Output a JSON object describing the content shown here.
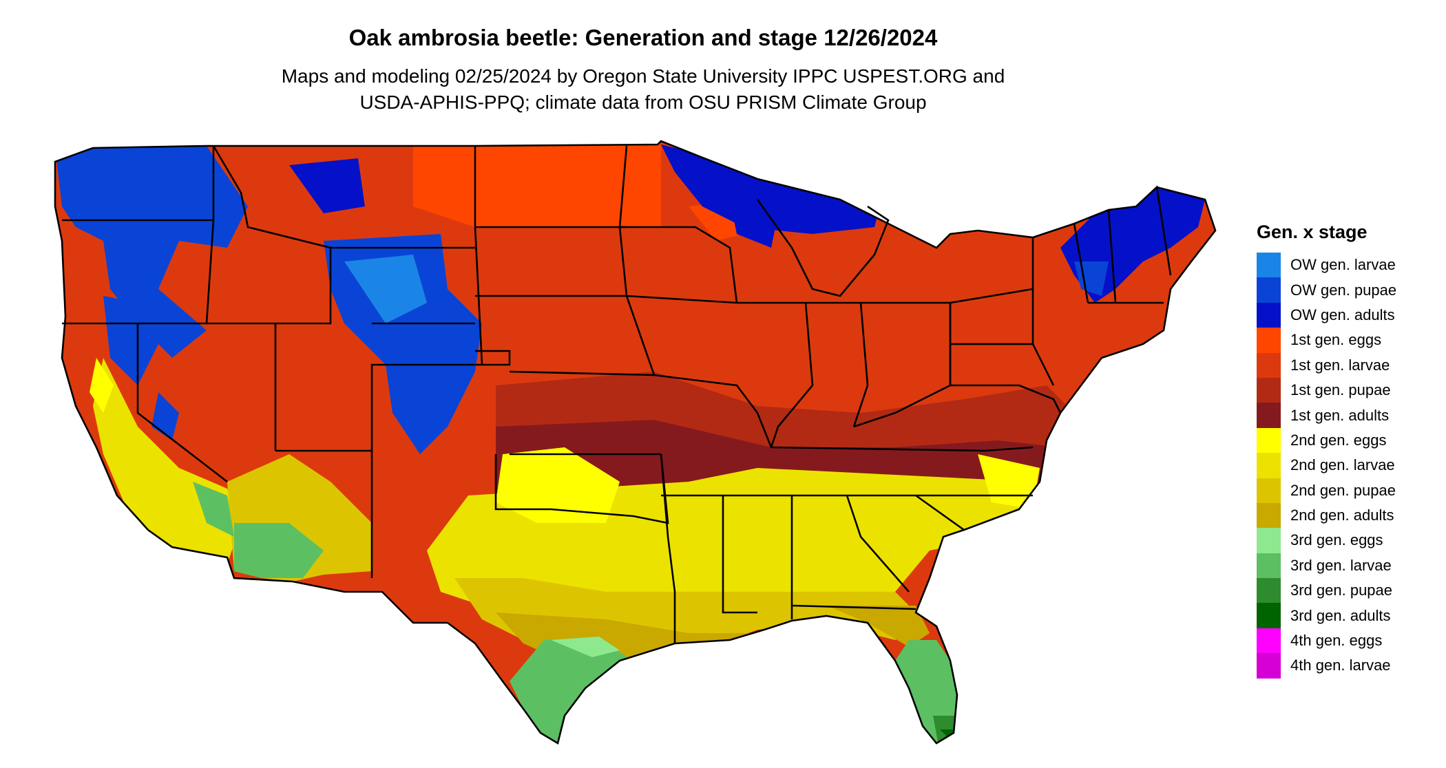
{
  "title": "Oak ambrosia beetle: Generation and stage 12/26/2024",
  "subtitle_line1": "Maps and modeling 02/25/2024 by Oregon State University IPPC USPEST.ORG and",
  "subtitle_line2": "USDA-APHIS-PPQ; climate data from OSU PRISM Climate Group",
  "legend": {
    "title": "Gen. x stage",
    "items": [
      {
        "label": "OW gen. larvae",
        "color": "#1a85e6"
      },
      {
        "label": "OW gen. pupae",
        "color": "#0a44d6"
      },
      {
        "label": "OW gen. adults",
        "color": "#0511c8"
      },
      {
        "label": "1st gen. eggs",
        "color": "#ff4600"
      },
      {
        "label": "1st gen. larvae",
        "color": "#dc3a0e"
      },
      {
        "label": "1st gen. pupae",
        "color": "#b32a14"
      },
      {
        "label": "1st gen. adults",
        "color": "#851a1e"
      },
      {
        "label": "2nd gen. eggs",
        "color": "#ffff00"
      },
      {
        "label": "2nd gen. larvae",
        "color": "#ece200"
      },
      {
        "label": "2nd gen. pupae",
        "color": "#dcc500"
      },
      {
        "label": "2nd gen. adults",
        "color": "#c9a800"
      },
      {
        "label": "3rd gen. eggs",
        "color": "#8ee98e"
      },
      {
        "label": "3rd gen. larvae",
        "color": "#5cc062"
      },
      {
        "label": "3rd gen. pupae",
        "color": "#2e8b2e"
      },
      {
        "label": "3rd gen. adults",
        "color": "#006400"
      },
      {
        "label": "4th gen. eggs",
        "color": "#ff00ff"
      },
      {
        "label": "4th gen. larvae",
        "color": "#d600d6"
      }
    ]
  }
}
